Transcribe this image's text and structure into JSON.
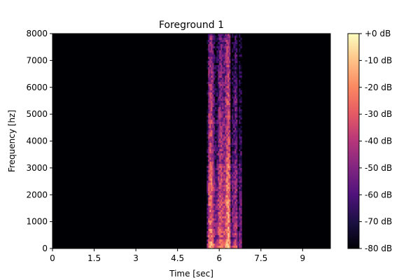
{
  "chart_data": {
    "type": "heatmap",
    "title": "Foreground 1",
    "xlabel": "Time [sec]",
    "ylabel": "Frequency [hz]",
    "xlim": [
      0,
      10
    ],
    "ylim": [
      0,
      8000
    ],
    "x_ticks": [
      0,
      1.5,
      3,
      4.5,
      6,
      7.5,
      9
    ],
    "x_tick_labels": [
      "0",
      "1.5",
      "3",
      "4.5",
      "6",
      "7.5",
      "9"
    ],
    "y_ticks": [
      0,
      1000,
      2000,
      3000,
      4000,
      5000,
      6000,
      7000,
      8000
    ],
    "y_tick_labels": [
      "0",
      "1000",
      "2000",
      "3000",
      "4000",
      "5000",
      "6000",
      "7000",
      "8000"
    ],
    "colorbar": {
      "range_db": [
        -80,
        0
      ],
      "ticks": [
        0,
        -10,
        -20,
        -30,
        -40,
        -50,
        -60,
        -70,
        -80
      ],
      "tick_labels": [
        "+0 dB",
        "-10 dB",
        "-20 dB",
        "-30 dB",
        "-40 dB",
        "-50 dB",
        "-60 dB",
        "-70 dB",
        "-80 dB"
      ],
      "colormap": "magma",
      "colors": [
        "#000004",
        "#1c1044",
        "#4f127b",
        "#812581",
        "#b5367a",
        "#e55964",
        "#fb8761",
        "#fec287",
        "#fcfdbf"
      ]
    },
    "signal_segment": {
      "start_sec": 5.55,
      "end_sec": 6.8,
      "background_db": -80
    }
  }
}
